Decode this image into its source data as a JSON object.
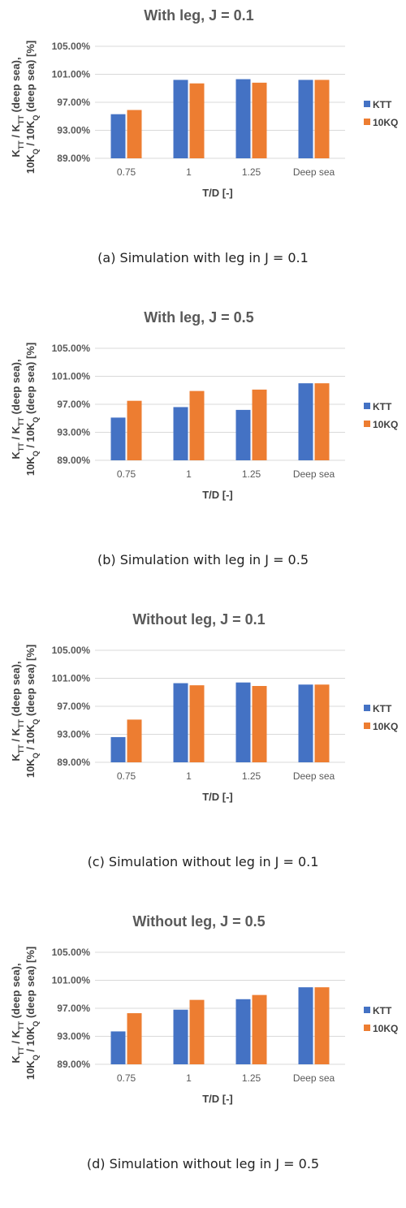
{
  "colors": {
    "KTT": "#4472C4",
    "10KQ": "#ED7D31",
    "grid": "#D9D9D9",
    "text": "#595959"
  },
  "ylabel_lines": [
    "K_TT / K_TT (deep sea),",
    "10K_Q / 10K_Q (deep sea) [%]"
  ],
  "xlabel": "T/D [-]",
  "chart_data": [
    {
      "type": "bar",
      "title": "With leg, J = 0.1",
      "caption": "(a) Simulation with leg in J = 0.1",
      "categories": [
        "0.75",
        "1",
        "1.25",
        "Deep sea"
      ],
      "yticks": [
        "105.00%",
        "101.00%",
        "97.00%",
        "93.00%",
        "89.00%"
      ],
      "ylim": [
        89,
        105
      ],
      "legend_position": "right",
      "series": [
        {
          "name": "KTT",
          "values": [
            95.3,
            100.2,
            100.3,
            100.2
          ]
        },
        {
          "name": "10KQ",
          "values": [
            95.9,
            99.7,
            99.8,
            100.2
          ]
        }
      ]
    },
    {
      "type": "bar",
      "title": "With leg, J = 0.5",
      "caption": "(b) Simulation with leg in J = 0.5",
      "categories": [
        "0.75",
        "1",
        "1.25",
        "Deep sea"
      ],
      "yticks": [
        "105.00%",
        "101.00%",
        "97.00%",
        "93.00%",
        "89.00%"
      ],
      "ylim": [
        89,
        105
      ],
      "legend_position": "right",
      "series": [
        {
          "name": "KTT",
          "values": [
            95.1,
            96.6,
            96.2,
            100.0
          ]
        },
        {
          "name": "10KQ",
          "values": [
            97.5,
            98.9,
            99.1,
            100.0
          ]
        }
      ]
    },
    {
      "type": "bar",
      "title": "Without leg, J = 0.1",
      "caption": "(c) Simulation without leg in J = 0.1",
      "categories": [
        "0.75",
        "1",
        "1.25",
        "Deep sea"
      ],
      "yticks": [
        "105.00%",
        "101.00%",
        "97.00%",
        "93.00%",
        "89.00%"
      ],
      "ylim": [
        89,
        105
      ],
      "legend_position": "right",
      "series": [
        {
          "name": "KTT",
          "values": [
            92.6,
            100.3,
            100.4,
            100.1
          ]
        },
        {
          "name": "10KQ",
          "values": [
            95.1,
            100.0,
            99.9,
            100.1
          ]
        }
      ]
    },
    {
      "type": "bar",
      "title": "Without leg, J = 0.5",
      "caption": "(d) Simulation without leg in J = 0.5",
      "categories": [
        "0.75",
        "1",
        "1.25",
        "Deep sea"
      ],
      "yticks": [
        "105.00%",
        "101.00%",
        "97.00%",
        "93.00%",
        "89.00%"
      ],
      "ylim": [
        89,
        105
      ],
      "legend_position": "right",
      "series": [
        {
          "name": "KTT",
          "values": [
            93.7,
            96.8,
            98.3,
            100.0
          ]
        },
        {
          "name": "10KQ",
          "values": [
            96.3,
            98.2,
            98.9,
            100.0
          ]
        }
      ]
    }
  ]
}
